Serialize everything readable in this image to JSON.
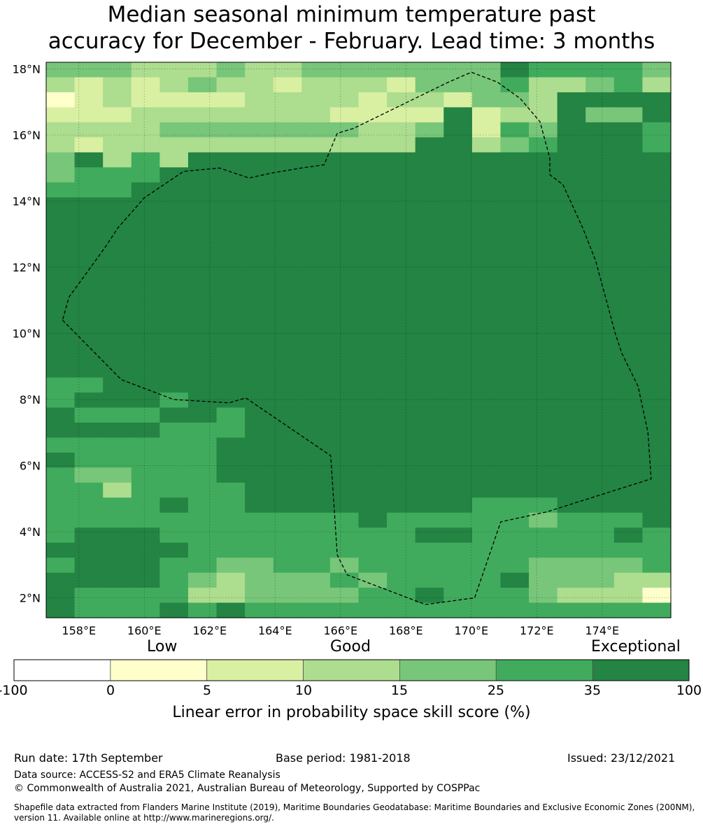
{
  "title": {
    "line1": "Median seasonal minimum temperature past",
    "line2": "accuracy for December - February. Lead time: 3 months"
  },
  "map": {
    "lat_range": [
      1.4,
      18.2
    ],
    "lon_range": [
      157.0,
      176.1
    ],
    "lat_ticks": [
      "18°N",
      "16°N",
      "14°N",
      "12°N",
      "10°N",
      "8°N",
      "6°N",
      "4°N",
      "2°N"
    ],
    "lon_ticks": [
      "158°E",
      "160°E",
      "162°E",
      "164°E",
      "166°E",
      "168°E",
      "170°E",
      "172°E",
      "174°E"
    ],
    "grid_rows": [
      "4443334334444444655554",
      "3232343323332444533453",
      "1232222333323324436666",
      "2223333333222262336446",
      "3333444444433462546665",
      "3233333333333663456665",
      "4635366666666666666666",
      "4555666666666666666666",
      "5556666666666666666666",
      "6666666666666666666666",
      "6666666666666666666666",
      "6666666666666666666666",
      "6666666666666666666666",
      "6666666666666666666666",
      "6666666666666666666666",
      "6666666666666666666666",
      "6666666666666666666666",
      "6666666666666666666666",
      "6666666666666666666666",
      "6666666666666666666666",
      "6666666666666666666666",
      "5566666666666666666666",
      "5666566666666666666666",
      "6555665666666666666666",
      "6666555666666666666666",
      "5555556666666666666666",
      "6555556666666666666666",
      "5445556666666666666666",
      "5535555666666666666666",
      "5555655666666665556666",
      "5555555555565555545556",
      "5666555555555665555565",
      "6666655555555555555555",
      "5666554455455555544445",
      "6666543444545555644433",
      "6555533444455655543331",
      "6555656555555555555555"
    ],
    "eez_boundary": [
      [
        157.5,
        10.4
      ],
      [
        158.2,
        9.7
      ],
      [
        159.3,
        8.6
      ],
      [
        160.9,
        8.0
      ],
      [
        162.6,
        7.9
      ],
      [
        163.1,
        8.05
      ],
      [
        165.7,
        6.3
      ],
      [
        165.9,
        3.3
      ],
      [
        166.2,
        2.7
      ],
      [
        168.6,
        1.8
      ],
      [
        170.1,
        2.0
      ],
      [
        170.9,
        4.3
      ],
      [
        172.3,
        4.6
      ],
      [
        175.5,
        5.6
      ],
      [
        175.4,
        7.0
      ],
      [
        175.1,
        8.4
      ],
      [
        174.6,
        9.4
      ],
      [
        174.4,
        10.0
      ],
      [
        173.8,
        12.2
      ],
      [
        173.4,
        13.2
      ],
      [
        172.8,
        14.5
      ],
      [
        172.4,
        14.8
      ],
      [
        172.4,
        15.3
      ],
      [
        172.1,
        16.4
      ],
      [
        171.5,
        17.1
      ],
      [
        170.8,
        17.6
      ],
      [
        170.0,
        17.9
      ],
      [
        169.3,
        17.6
      ],
      [
        166.4,
        16.2
      ],
      [
        165.9,
        16.05
      ],
      [
        165.5,
        15.1
      ],
      [
        164.8,
        15.0
      ],
      [
        163.9,
        14.85
      ],
      [
        163.2,
        14.7
      ],
      [
        162.3,
        15.0
      ],
      [
        161.2,
        14.9
      ],
      [
        160.0,
        14.1
      ],
      [
        159.2,
        13.2
      ],
      [
        158.8,
        12.6
      ],
      [
        157.7,
        11.1
      ],
      [
        157.5,
        10.4
      ]
    ]
  },
  "colorbar": {
    "categories": [
      "Low",
      "Good",
      "Exceptional"
    ],
    "ticks": [
      "-100",
      "0",
      "5",
      "10",
      "15",
      "25",
      "35",
      "100"
    ],
    "colors": [
      "#ffffff",
      "#ffffcc",
      "#d9f0a3",
      "#addd8e",
      "#78c679",
      "#41ab5d",
      "#238443"
    ],
    "label": "Linear error in probability space skill score (%)"
  },
  "footer": {
    "run_date": "Run date: 17th September",
    "base_period": "Base period: 1981-2018",
    "issued": "Issued: 23/12/2021",
    "data_source": "Data source: ACCESS-S2 and ERA5 Climate Reanalysis",
    "copyright": "© Commonwealth of Australia 2021, Australian Bureau of Meteorology, Supported by COSPPac",
    "shapefile_line1": "Shapefile data extracted from Flanders Marine Institute (2019), Maritime Boundaries Geodatabase: Maritime Boundaries and Exclusive Economic Zones (200NM),",
    "shapefile_line2": "version 11. Available online at http://www.marineregions.org/."
  }
}
